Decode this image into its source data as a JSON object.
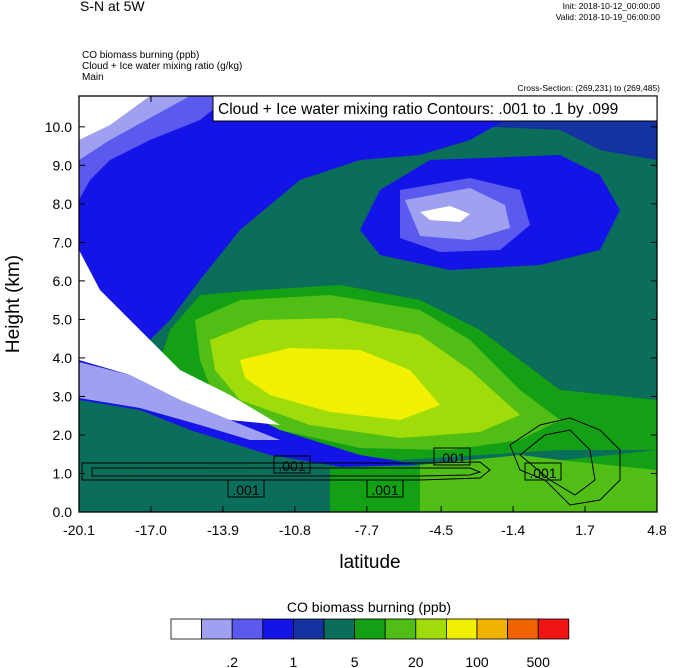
{
  "header": {
    "title": "S-N at 5W",
    "init": "Init: 2018-10-12_00:00:00",
    "valid": "Valid: 2018-10-19_06:00:00",
    "field1": "CO biomass burning   (ppb)",
    "field2": "Cloud + Ice water mixing ratio   (g/kg)",
    "field3": "Main",
    "cross_section": "Cross-Section: (269,231) to (269,485)"
  },
  "chart_data": {
    "type": "heatmap",
    "title": "Cloud + Ice water mixing ratio Contours: .001 to .1 by .099",
    "xlabel": "latitude",
    "ylabel": "Height (km)",
    "xlim": [
      -20.1,
      4.8
    ],
    "ylim": [
      0.0,
      10.8
    ],
    "x_ticks": [
      "-20.1",
      "-17.0",
      "-13.9",
      "-10.8",
      "-7.7",
      "-4.5",
      "-1.4",
      "1.7",
      "4.8"
    ],
    "y_ticks": [
      "0.0",
      "1.0",
      "2.0",
      "3.0",
      "4.0",
      "5.0",
      "6.0",
      "7.0",
      "8.0",
      "9.0",
      "10.0"
    ],
    "contour_labels": [
      ".001",
      ".001",
      ".001",
      ".001",
      ".001"
    ],
    "colorbar": {
      "title": "CO biomass burning  (ppb)",
      "colors": [
        "#ffffff",
        "#a0a0f0",
        "#5a5aee",
        "#1414e6",
        "#1432a0",
        "#0a6e5a",
        "#14a014",
        "#50be14",
        "#a0dc0a",
        "#f0f000",
        "#f0b400",
        "#f06400",
        "#f01414"
      ],
      "labels": [
        ".2",
        "1",
        "5",
        "20",
        "100",
        "500"
      ]
    }
  }
}
